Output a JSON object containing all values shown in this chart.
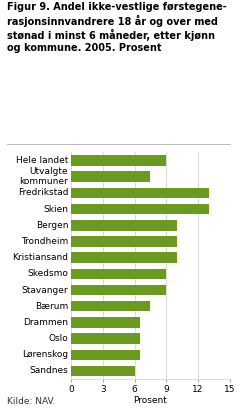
{
  "title_line1": "Figur 9. Andel ikke-vestlige førstegene-",
  "title_line2": "rasjonsinnvandrere 18 år og over med",
  "title_line3": "stønad i minst 6 måneder, etter kjønn",
  "title_line4": "og kommune. 2005. Prosent",
  "categories": [
    "Hele landet",
    "Utvalgte\nkommuner",
    "Fredrikstad",
    "Skien",
    "Bergen",
    "Trondheim",
    "Kristiansand",
    "Skedsmo",
    "Stavanger",
    "Bærum",
    "Drammen",
    "Oslo",
    "Lørenskog",
    "Sandnes"
  ],
  "values": [
    9.0,
    7.5,
    13.0,
    13.0,
    10.0,
    10.0,
    10.0,
    9.0,
    9.0,
    7.5,
    6.5,
    6.5,
    6.5,
    6.0
  ],
  "bar_color": "#6a9a1f",
  "xlim": [
    0,
    15
  ],
  "xticks": [
    0,
    3,
    6,
    9,
    12,
    15
  ],
  "xlabel": "Prosent",
  "source": "Kilde: NAV.",
  "background_color": "#ffffff",
  "grid_color": "#cccccc",
  "title_fontsize": 7.0,
  "label_fontsize": 6.5,
  "tick_fontsize": 6.5
}
